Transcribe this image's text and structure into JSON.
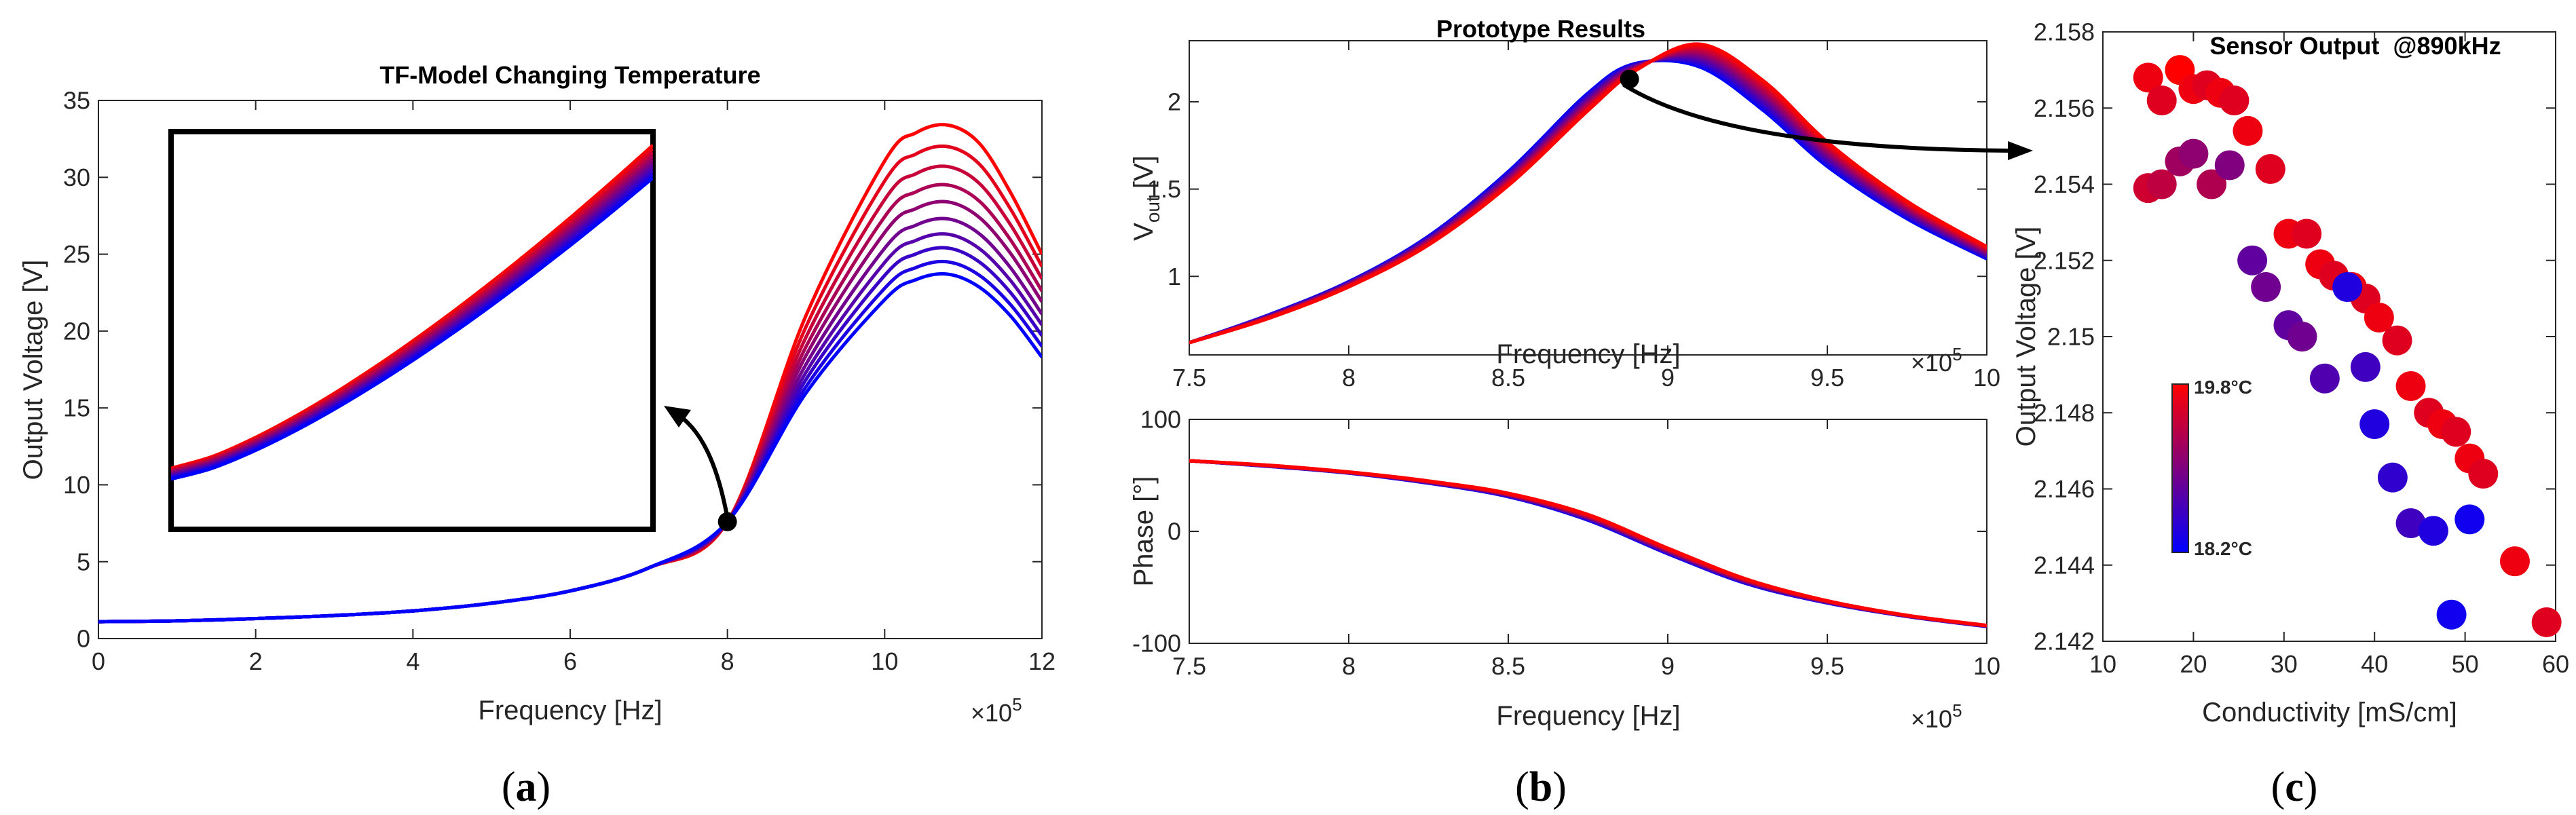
{
  "captions": [
    "(a)",
    "(b)",
    "(c)"
  ],
  "colors": {
    "warm": "#ff0000",
    "cold": "#0000ff",
    "axis": "#262626",
    "grid": "#dcdcdc"
  },
  "chart_data": [
    {
      "type": "line",
      "title": "TF-Model Changing Temperature",
      "xlabel": "Frequency [Hz]",
      "ylabel": "Output Voltage [V]",
      "xlim": [
        0,
        12
      ],
      "ylim": [
        0,
        35
      ],
      "x_multiplier": "×10",
      "x_multiplier_exp": "5",
      "xticks": [
        "0",
        "2",
        "4",
        "6",
        "8",
        "10",
        "12"
      ],
      "yticks": [
        "0",
        "5",
        "10",
        "15",
        "20",
        "25",
        "30",
        "35"
      ],
      "marker_point": {
        "x": 8,
        "y": 7.6
      },
      "inset": "zoom of curves between 1x10^5 and 7x10^5 Hz",
      "series_peaks": [
        33.4,
        32.0,
        30.7,
        29.5,
        28.4,
        27.3,
        26.3,
        25.4,
        24.5,
        23.7
      ],
      "series_ends_at_12": [
        25.0,
        24.2,
        23.4,
        22.6,
        21.9,
        21.1,
        20.4,
        19.7,
        19.0,
        18.3
      ],
      "x": [
        0,
        1,
        2,
        3,
        4,
        5,
        6,
        7,
        8,
        9,
        10,
        10.4,
        10.8,
        11.2,
        11.6,
        12
      ],
      "shared_y_lowfreq": [
        1.1,
        1.15,
        1.3,
        1.5,
        1.8,
        2.3,
        3.1,
        4.6,
        7.6
      ]
    },
    {
      "type": "line",
      "title": "Prototype Results",
      "xlabel": "Frequency [Hz]",
      "ylabel": "V",
      "ylabel_sub": "out",
      "ylabel_unit": " [V]",
      "xlim": [
        7.5,
        10
      ],
      "ylim": [
        0.55,
        2.35
      ],
      "x_multiplier": "×10",
      "x_multiplier_exp": "5",
      "xticks": [
        "7.5",
        "8",
        "8.5",
        "9",
        "9.5",
        "10"
      ],
      "yticks": [
        "1",
        "1.5",
        "2"
      ],
      "marker_point": {
        "x": 8.88,
        "y": 2.13
      },
      "x": [
        7.5,
        7.75,
        8.0,
        8.25,
        8.5,
        8.75,
        8.9,
        9.1,
        9.3,
        9.5,
        9.75,
        10.0
      ],
      "series_red": [
        0.62,
        0.76,
        0.94,
        1.18,
        1.52,
        1.95,
        2.18,
        2.33,
        2.12,
        1.77,
        1.43,
        1.17
      ],
      "series_blue": [
        0.62,
        0.78,
        0.97,
        1.23,
        1.6,
        2.05,
        2.22,
        2.2,
        1.95,
        1.63,
        1.33,
        1.1
      ]
    },
    {
      "type": "line",
      "title": "",
      "xlabel": "Frequency [Hz]",
      "ylabel": "Phase [°]",
      "xlim": [
        7.5,
        10
      ],
      "ylim": [
        -100,
        100
      ],
      "x_multiplier": "×10",
      "x_multiplier_exp": "5",
      "xticks": [
        "7.5",
        "8",
        "8.5",
        "9",
        "9.5",
        "10"
      ],
      "yticks": [
        "-100",
        "0",
        "100"
      ],
      "x": [
        7.5,
        7.75,
        8.0,
        8.25,
        8.5,
        8.75,
        9.0,
        9.25,
        9.5,
        9.75,
        10.0
      ],
      "series_red": [
        63,
        59,
        53,
        45,
        34,
        15,
        -15,
        -43,
        -62,
        -75,
        -84
      ],
      "series_blue": [
        63,
        58,
        52,
        43,
        31,
        10,
        -20,
        -47,
        -64,
        -76,
        -85
      ]
    },
    {
      "type": "scatter",
      "title": "Sensor Output  @890kHz",
      "xlabel": "Conductivity [mS/cm]",
      "ylabel": "Output Voltage [V]",
      "xlim": [
        10,
        60
      ],
      "ylim": [
        2.142,
        2.158
      ],
      "xticks": [
        "10",
        "20",
        "30",
        "40",
        "50",
        "60"
      ],
      "yticks": [
        "2.142",
        "2.144",
        "2.146",
        "2.148",
        "2.15",
        "2.152",
        "2.154",
        "2.156",
        "2.158"
      ],
      "colorbar": {
        "max_label": "19.8°C",
        "min_label": "18.2°C",
        "max": 19.8,
        "min": 18.2
      },
      "points": [
        {
          "x": 15.0,
          "y": 2.1568,
          "t": 19.7
        },
        {
          "x": 16.5,
          "y": 2.1562,
          "t": 19.6
        },
        {
          "x": 18.5,
          "y": 2.157,
          "t": 19.8
        },
        {
          "x": 20.0,
          "y": 2.1565,
          "t": 19.7
        },
        {
          "x": 21.5,
          "y": 2.1566,
          "t": 19.6
        },
        {
          "x": 23.0,
          "y": 2.1564,
          "t": 19.7
        },
        {
          "x": 24.5,
          "y": 2.1562,
          "t": 19.6
        },
        {
          "x": 26.0,
          "y": 2.1554,
          "t": 19.7
        },
        {
          "x": 15.0,
          "y": 2.1539,
          "t": 19.5
        },
        {
          "x": 16.5,
          "y": 2.154,
          "t": 19.4
        },
        {
          "x": 18.5,
          "y": 2.1546,
          "t": 19.2
        },
        {
          "x": 20.0,
          "y": 2.1548,
          "t": 19.1
        },
        {
          "x": 22.0,
          "y": 2.154,
          "t": 19.3
        },
        {
          "x": 24.0,
          "y": 2.1545,
          "t": 19.0
        },
        {
          "x": 28.5,
          "y": 2.1544,
          "t": 19.6
        },
        {
          "x": 30.5,
          "y": 2.1527,
          "t": 19.7
        },
        {
          "x": 32.5,
          "y": 2.1527,
          "t": 19.6
        },
        {
          "x": 34.0,
          "y": 2.1519,
          "t": 19.7
        },
        {
          "x": 35.5,
          "y": 2.1516,
          "t": 19.6
        },
        {
          "x": 37.5,
          "y": 2.1513,
          "t": 19.7
        },
        {
          "x": 39.0,
          "y": 2.151,
          "t": 19.6
        },
        {
          "x": 40.5,
          "y": 2.1505,
          "t": 19.7
        },
        {
          "x": 42.5,
          "y": 2.1499,
          "t": 19.6
        },
        {
          "x": 44.0,
          "y": 2.1487,
          "t": 19.7
        },
        {
          "x": 46.0,
          "y": 2.148,
          "t": 19.6
        },
        {
          "x": 47.5,
          "y": 2.1477,
          "t": 19.7
        },
        {
          "x": 49.0,
          "y": 2.1475,
          "t": 19.6
        },
        {
          "x": 50.5,
          "y": 2.1468,
          "t": 19.7
        },
        {
          "x": 52.0,
          "y": 2.1464,
          "t": 19.6
        },
        {
          "x": 55.5,
          "y": 2.1441,
          "t": 19.7
        },
        {
          "x": 59.0,
          "y": 2.1425,
          "t": 19.6
        },
        {
          "x": 26.5,
          "y": 2.152,
          "t": 18.8
        },
        {
          "x": 28.0,
          "y": 2.1513,
          "t": 18.9
        },
        {
          "x": 30.5,
          "y": 2.1503,
          "t": 18.8
        },
        {
          "x": 32.0,
          "y": 2.15,
          "t": 18.9
        },
        {
          "x": 34.5,
          "y": 2.1489,
          "t": 18.7
        },
        {
          "x": 37.0,
          "y": 2.1513,
          "t": 18.4
        },
        {
          "x": 39.0,
          "y": 2.1492,
          "t": 18.6
        },
        {
          "x": 40.0,
          "y": 2.1477,
          "t": 18.4
        },
        {
          "x": 42.0,
          "y": 2.1463,
          "t": 18.5
        },
        {
          "x": 44.0,
          "y": 2.1451,
          "t": 18.6
        },
        {
          "x": 46.5,
          "y": 2.1449,
          "t": 18.4
        },
        {
          "x": 48.5,
          "y": 2.1427,
          "t": 18.3
        },
        {
          "x": 50.5,
          "y": 2.1452,
          "t": 18.3
        }
      ]
    }
  ]
}
